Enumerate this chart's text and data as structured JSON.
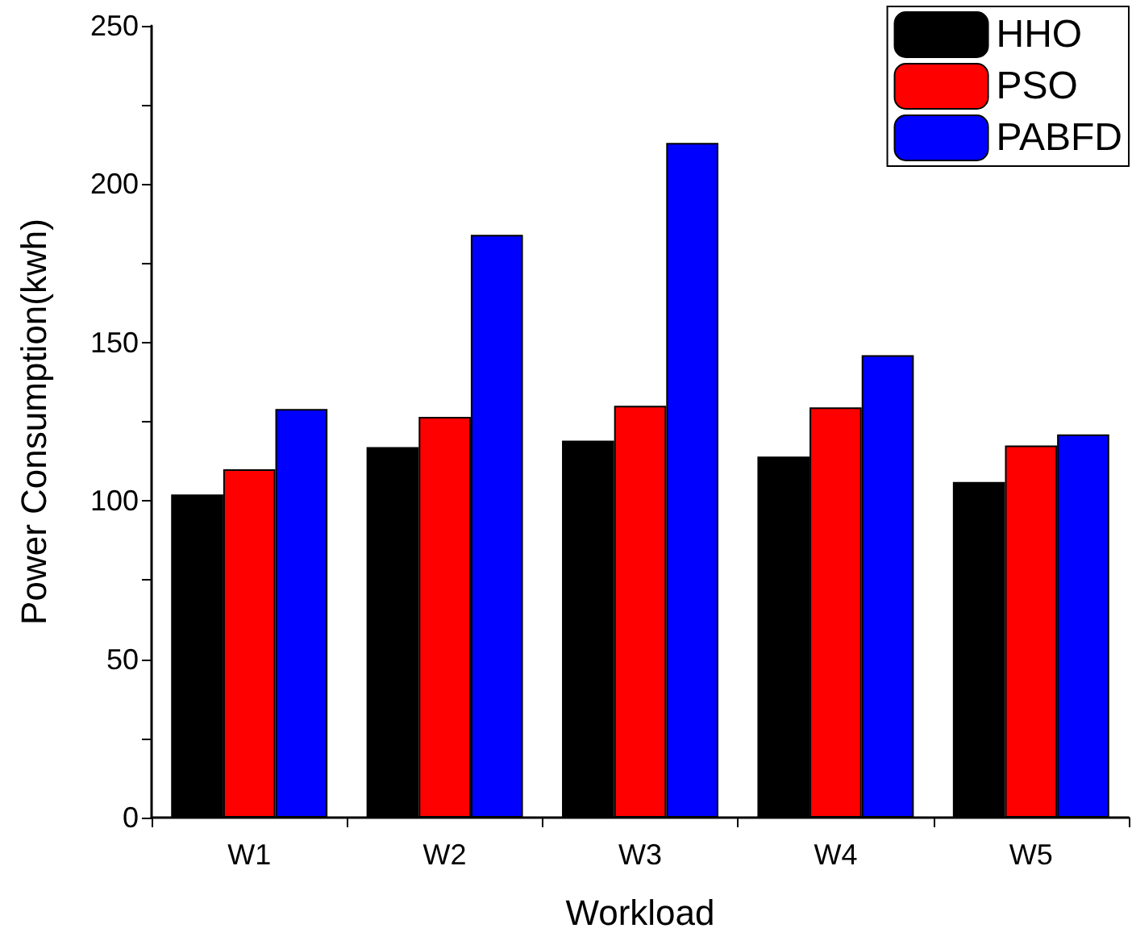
{
  "chart_data": {
    "type": "bar",
    "xlabel": "Workload",
    "ylabel": "Power Consumption(kwh)",
    "categories": [
      "W1",
      "W2",
      "W3",
      "W4",
      "W5"
    ],
    "series": [
      {
        "name": "HHO",
        "color": "#000000",
        "values": [
          102,
          117,
          119,
          114,
          106
        ]
      },
      {
        "name": "PSO",
        "color": "#ff0000",
        "values": [
          110,
          126.5,
          130,
          129.5,
          117.5
        ]
      },
      {
        "name": "PABFD",
        "color": "#0000ff",
        "values": [
          129,
          184,
          213,
          146,
          121
        ]
      }
    ],
    "ylim": [
      0,
      250
    ],
    "yticks": [
      0,
      50,
      100,
      150,
      200,
      250
    ],
    "grid": false,
    "legend": "top right"
  }
}
